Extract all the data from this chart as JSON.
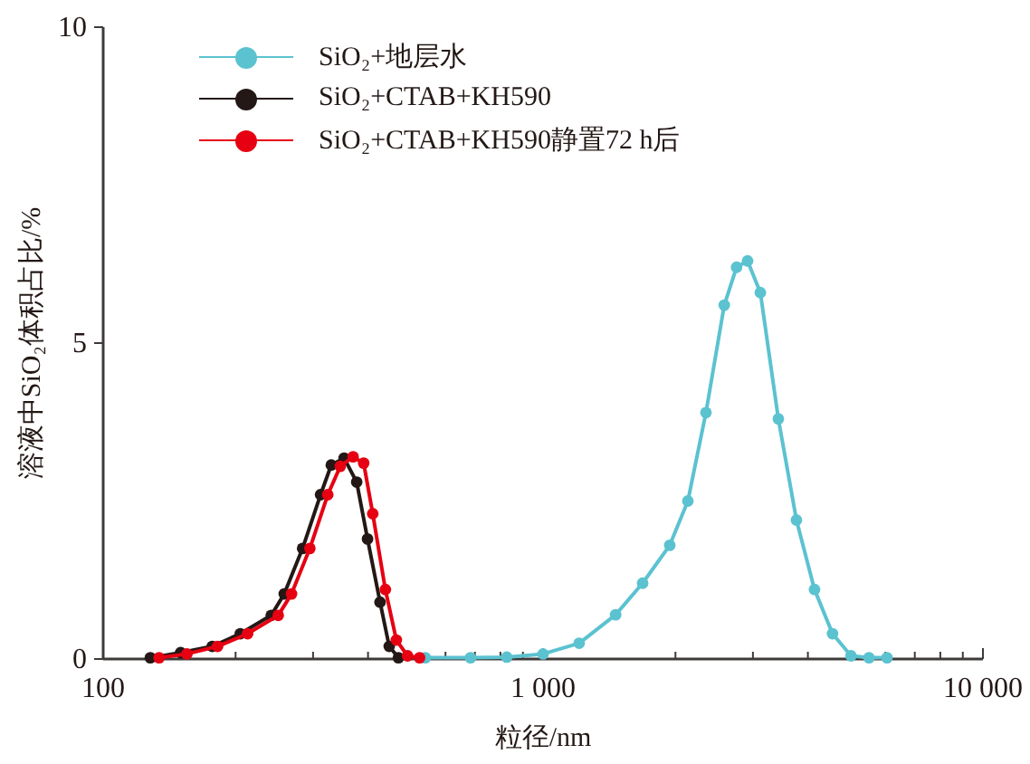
{
  "chart_data": {
    "type": "line",
    "xlabel": "粒径/nm",
    "ylabel": "溶液中SiO₂体积占比/%",
    "log": "x",
    "xlim": [
      100,
      10000
    ],
    "xticks": [
      100,
      {
        "value": 200,
        "label": null
      },
      {
        "value": 300,
        "label": null
      },
      {
        "value": 400,
        "label": null
      },
      {
        "value": 500,
        "label": null
      },
      {
        "value": 600,
        "label": null
      },
      {
        "value": 700,
        "label": null
      },
      {
        "value": 800,
        "label": null
      },
      {
        "value": 900,
        "label": null
      },
      {
        "value": 1000,
        "label": "1 000"
      },
      {
        "value": 2000,
        "label": null
      },
      {
        "value": 3000,
        "label": null
      },
      {
        "value": 4000,
        "label": null
      },
      {
        "value": 5000,
        "label": null
      },
      {
        "value": 6000,
        "label": null
      },
      {
        "value": 7000,
        "label": null
      },
      {
        "value": 8000,
        "label": null
      },
      {
        "value": 9000,
        "label": null
      },
      {
        "value": 10000,
        "label": "10 000"
      }
    ],
    "ylim": [
      0,
      10
    ],
    "yticks": [
      0,
      5,
      10
    ],
    "grid": false,
    "legend": "top left",
    "marker": "circle",
    "line_style": "solid",
    "series": [
      {
        "name": "SiO₂+地层水",
        "color": "#5bc2d0",
        "x": [
          540,
          684,
          827,
          1000,
          1208,
          1462,
          1684,
          1941,
          2134,
          2346,
          2582,
          2754,
          2917,
          3119,
          3427,
          3767,
          4141,
          4550,
          5012,
          5508,
          6053
        ],
        "values": [
          0.02,
          0.02,
          0.03,
          0.08,
          0.25,
          0.7,
          1.2,
          1.8,
          2.5,
          3.9,
          5.6,
          6.2,
          6.3,
          5.8,
          3.8,
          2.2,
          1.1,
          0.4,
          0.05,
          0.02,
          0.02
        ]
      },
      {
        "name": "SiO₂+CTAB+KH590",
        "color": "#231815",
        "x": [
          128,
          150,
          177,
          205,
          241,
          258,
          284,
          312,
          330,
          353,
          377,
          399,
          426,
          447,
          469
        ],
        "values": [
          0.02,
          0.1,
          0.2,
          0.4,
          0.69,
          1.03,
          1.75,
          2.6,
          3.07,
          3.18,
          2.8,
          1.9,
          0.9,
          0.2,
          0.02
        ]
      },
      {
        "name": "SiO₂+CTAB+KH590静置72 h后",
        "color": "#e60012",
        "x": [
          134,
          155,
          182,
          213,
          250,
          268,
          295,
          324,
          346,
          370,
          391,
          410,
          438,
          464,
          492,
          524
        ],
        "values": [
          0.02,
          0.08,
          0.2,
          0.4,
          0.69,
          1.03,
          1.75,
          2.6,
          3.05,
          3.2,
          3.1,
          2.3,
          1.1,
          0.3,
          0.05,
          0.02
        ]
      }
    ]
  }
}
